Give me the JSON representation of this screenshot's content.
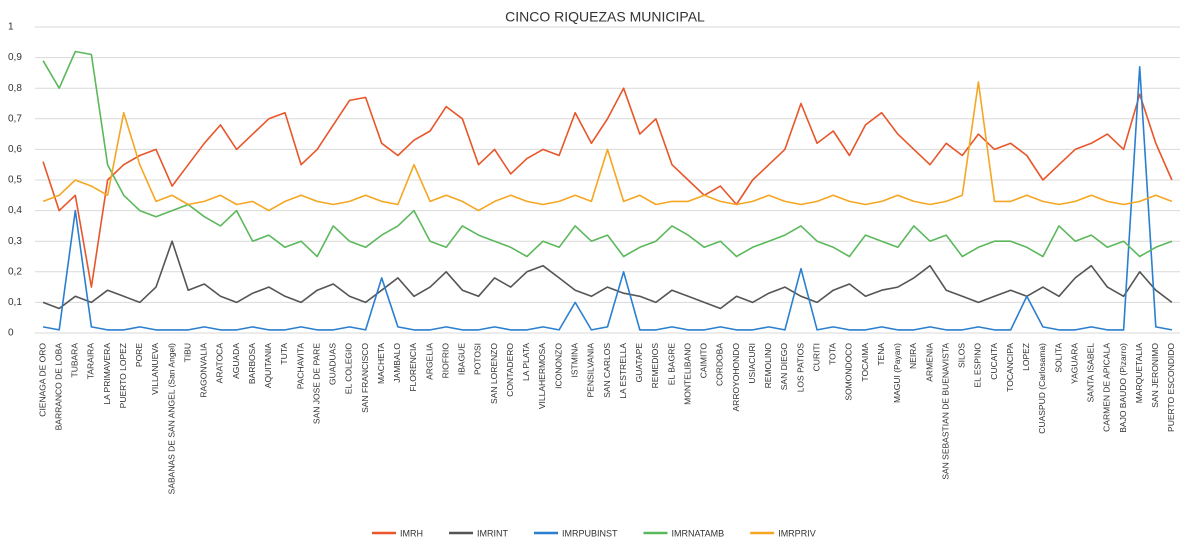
{
  "chart_data": {
    "type": "line",
    "title": "CINCO RIQUEZAS MUNICIPAL",
    "categories": [
      "CIENAGA DE ORO",
      "BARRANCO DE LOBA",
      "TUBARA",
      "TARAIRA",
      "LA PRIMAVERA",
      "PUERTO LOPEZ",
      "PORE",
      "VILLANUEVA",
      "SABANAS DE SAN ANGEL (San Angel)",
      "TIBU",
      "RAGONVALIA",
      "ARATOCA",
      "AGUADA",
      "BARBOSA",
      "AQUITANIA",
      "TUTA",
      "PACHAVITA",
      "SAN JOSE DE PARE",
      "GUADUAS",
      "EL COLEGIO",
      "SAN FRANCISCO",
      "MACHETA",
      "JAMBALO",
      "FLORENCIA",
      "ARGELIA",
      "RIOFRIO",
      "IBAGUE",
      "POTOSI",
      "SAN LORENZO",
      "CONTADERO",
      "LA PLATA",
      "VILLAHERMOSA",
      "ICONONZO",
      "ISTMINA",
      "PENSILVANIA",
      "SAN CARLOS",
      "LA ESTRELLA",
      "GUATAPE",
      "REMEDIOS",
      "EL BAGRE",
      "MONTELIBANO",
      "CAIMITO",
      "CORDOBA",
      "ARROYOHONDO",
      "USIACURI",
      "REMOLINO",
      "SAN DIEGO",
      "LOS PATIOS",
      "CURITI",
      "TOTA",
      "SOMONDOCO",
      "TOCAIMA",
      "TENA",
      "MAGUI (Payan)",
      "NEIRA",
      "ARMENIA",
      "SAN SEBASTIAN DE BUENAVISTA",
      "SILOS",
      "EL ESPINO",
      "CUCAITA",
      "TOCANCIPA",
      "LOPEZ",
      "CUASPUD (Carlosama)",
      "SOLITA",
      "YAGUARA",
      "SANTA ISABEL",
      "CARMEN DE APICALA",
      "BAJO BAUDO (Pizarro)",
      "MARQUETALIA",
      "SAN JERONIMO",
      "PUERTO ESCONDIDO"
    ],
    "series": [
      {
        "name": "IMRH",
        "color": "#e8562a",
        "values": [
          0.56,
          0.4,
          0.45,
          0.15,
          0.5,
          0.55,
          0.58,
          0.6,
          0.48,
          0.55,
          0.62,
          0.68,
          0.6,
          0.65,
          0.7,
          0.72,
          0.55,
          0.6,
          0.68,
          0.76,
          0.77,
          0.62,
          0.58,
          0.63,
          0.66,
          0.74,
          0.7,
          0.55,
          0.6,
          0.52,
          0.57,
          0.6,
          0.58,
          0.72,
          0.62,
          0.7,
          0.8,
          0.65,
          0.7,
          0.55,
          0.5,
          0.45,
          0.48,
          0.42,
          0.5,
          0.55,
          0.6,
          0.75,
          0.62,
          0.66,
          0.58,
          0.68,
          0.72,
          0.65,
          0.6,
          0.55,
          0.62,
          0.58,
          0.65,
          0.6,
          0.62,
          0.58,
          0.5,
          0.55,
          0.6,
          0.62,
          0.65,
          0.6,
          0.78,
          0.62,
          0.5
        ]
      },
      {
        "name": "IMRINT",
        "color": "#555555",
        "values": [
          0.1,
          0.08,
          0.12,
          0.1,
          0.14,
          0.12,
          0.1,
          0.15,
          0.3,
          0.14,
          0.16,
          0.12,
          0.1,
          0.13,
          0.15,
          0.12,
          0.1,
          0.14,
          0.16,
          0.12,
          0.1,
          0.14,
          0.18,
          0.12,
          0.15,
          0.2,
          0.14,
          0.12,
          0.18,
          0.15,
          0.2,
          0.22,
          0.18,
          0.14,
          0.12,
          0.15,
          0.13,
          0.12,
          0.1,
          0.14,
          0.12,
          0.1,
          0.08,
          0.12,
          0.1,
          0.13,
          0.15,
          0.12,
          0.1,
          0.14,
          0.16,
          0.12,
          0.14,
          0.15,
          0.18,
          0.22,
          0.14,
          0.12,
          0.1,
          0.12,
          0.14,
          0.12,
          0.15,
          0.12,
          0.18,
          0.22,
          0.15,
          0.12,
          0.2,
          0.14,
          0.1
        ]
      },
      {
        "name": "IMRPUBINST",
        "color": "#2b7fd0",
        "values": [
          0.02,
          0.01,
          0.4,
          0.02,
          0.01,
          0.01,
          0.02,
          0.01,
          0.01,
          0.01,
          0.02,
          0.01,
          0.01,
          0.02,
          0.01,
          0.01,
          0.02,
          0.01,
          0.01,
          0.02,
          0.01,
          0.18,
          0.02,
          0.01,
          0.01,
          0.02,
          0.01,
          0.01,
          0.02,
          0.01,
          0.01,
          0.02,
          0.01,
          0.1,
          0.01,
          0.02,
          0.2,
          0.01,
          0.01,
          0.02,
          0.01,
          0.01,
          0.02,
          0.01,
          0.01,
          0.02,
          0.01,
          0.21,
          0.01,
          0.02,
          0.01,
          0.01,
          0.02,
          0.01,
          0.01,
          0.02,
          0.01,
          0.01,
          0.02,
          0.01,
          0.01,
          0.12,
          0.02,
          0.01,
          0.01,
          0.02,
          0.01,
          0.01,
          0.87,
          0.02,
          0.01
        ]
      },
      {
        "name": "IMRNATAMB",
        "color": "#5cb85c",
        "values": [
          0.89,
          0.8,
          0.92,
          0.91,
          0.55,
          0.45,
          0.4,
          0.38,
          0.4,
          0.42,
          0.38,
          0.35,
          0.4,
          0.3,
          0.32,
          0.28,
          0.3,
          0.25,
          0.35,
          0.3,
          0.28,
          0.32,
          0.35,
          0.4,
          0.3,
          0.28,
          0.35,
          0.32,
          0.3,
          0.28,
          0.25,
          0.3,
          0.28,
          0.35,
          0.3,
          0.32,
          0.25,
          0.28,
          0.3,
          0.35,
          0.32,
          0.28,
          0.3,
          0.25,
          0.28,
          0.3,
          0.32,
          0.35,
          0.3,
          0.28,
          0.25,
          0.32,
          0.3,
          0.28,
          0.35,
          0.3,
          0.32,
          0.25,
          0.28,
          0.3,
          0.3,
          0.28,
          0.25,
          0.35,
          0.3,
          0.32,
          0.28,
          0.3,
          0.25,
          0.28,
          0.3
        ]
      },
      {
        "name": "IMRPRIV",
        "color": "#f5a623",
        "values": [
          0.43,
          0.45,
          0.5,
          0.48,
          0.45,
          0.72,
          0.55,
          0.43,
          0.45,
          0.42,
          0.43,
          0.45,
          0.42,
          0.43,
          0.4,
          0.43,
          0.45,
          0.43,
          0.42,
          0.43,
          0.45,
          0.43,
          0.42,
          0.55,
          0.43,
          0.45,
          0.43,
          0.4,
          0.43,
          0.45,
          0.43,
          0.42,
          0.43,
          0.45,
          0.43,
          0.6,
          0.43,
          0.45,
          0.42,
          0.43,
          0.43,
          0.45,
          0.43,
          0.42,
          0.43,
          0.45,
          0.43,
          0.42,
          0.43,
          0.45,
          0.43,
          0.42,
          0.43,
          0.45,
          0.43,
          0.42,
          0.43,
          0.45,
          0.82,
          0.43,
          0.43,
          0.45,
          0.43,
          0.42,
          0.43,
          0.45,
          0.43,
          0.42,
          0.43,
          0.45,
          0.43
        ]
      }
    ],
    "ylim": [
      0,
      1
    ],
    "yticks": [
      0,
      {
        "value": 0.1,
        "label": "0,1"
      },
      {
        "value": 0.2,
        "label": "0,2"
      },
      {
        "value": 0.3,
        "label": "0,3"
      },
      {
        "value": 0.4,
        "label": "0,4"
      },
      {
        "value": 0.5,
        "label": "0,5"
      },
      {
        "value": 0.6,
        "label": "0,6"
      },
      {
        "value": 0.7,
        "label": "0,7"
      },
      {
        "value": 0.8,
        "label": "0,8"
      },
      {
        "value": 0.9,
        "label": "0,9"
      },
      1
    ],
    "grid": true
  }
}
